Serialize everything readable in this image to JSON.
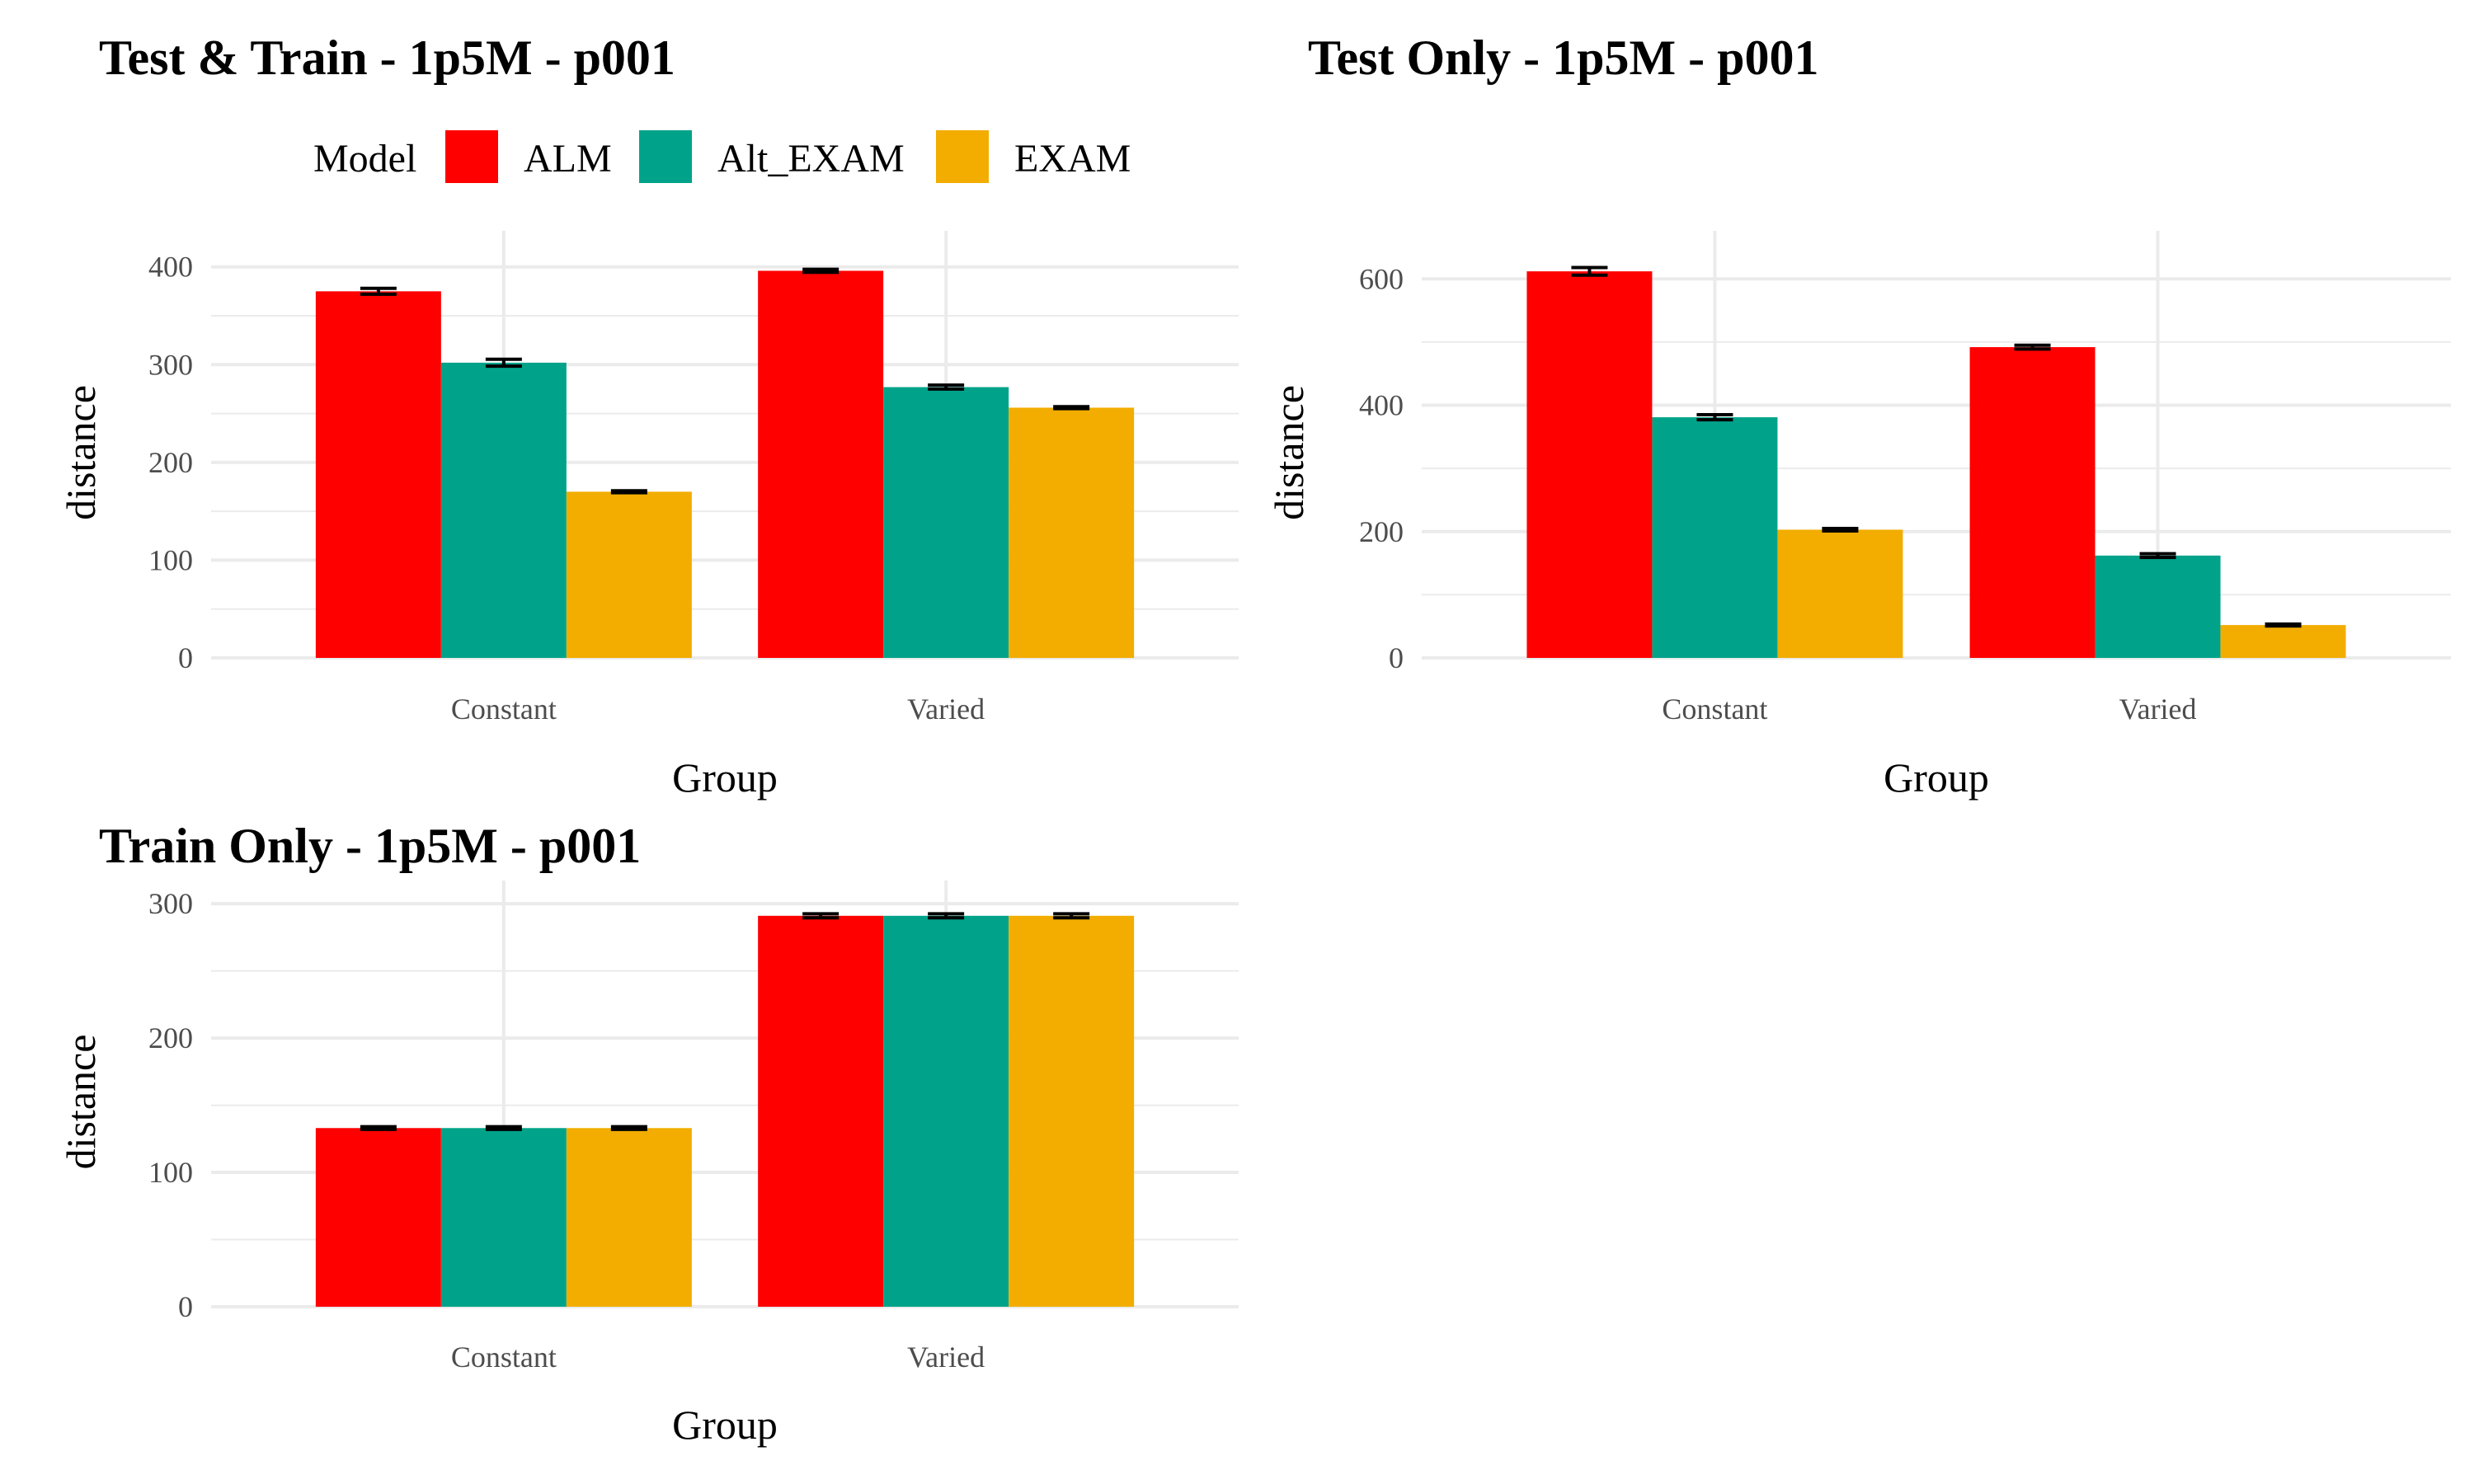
{
  "legend": {
    "title": "Model",
    "items": [
      {
        "label": "ALM",
        "color": "#ff0000"
      },
      {
        "label": "Alt_EXAM",
        "color": "#00a38a"
      },
      {
        "label": "EXAM",
        "color": "#f2ad00"
      }
    ]
  },
  "chart_data": [
    {
      "type": "bar",
      "title": "Test & Train - 1p5M - p001",
      "xlabel": "Group",
      "ylabel": "distance",
      "categories": [
        "Constant",
        "Varied"
      ],
      "ylim": [
        0,
        420
      ],
      "yticks": [
        0,
        100,
        200,
        300,
        400
      ],
      "legend_position": "top",
      "series": [
        {
          "name": "ALM",
          "values": [
            375,
            396
          ],
          "errors": [
            3,
            1.5
          ]
        },
        {
          "name": "Alt_EXAM",
          "values": [
            302,
            277
          ],
          "errors": [
            3.5,
            2
          ]
        },
        {
          "name": "EXAM",
          "values": [
            170,
            256
          ],
          "errors": [
            1,
            1
          ]
        }
      ]
    },
    {
      "type": "bar",
      "title": "Test Only - 1p5M - p001",
      "xlabel": "Group",
      "ylabel": "distance",
      "categories": [
        "Constant",
        "Varied"
      ],
      "ylim": [
        0,
        650
      ],
      "yticks": [
        0,
        200,
        400,
        600
      ],
      "series": [
        {
          "name": "ALM",
          "values": [
            612,
            492
          ],
          "errors": [
            6,
            3
          ]
        },
        {
          "name": "Alt_EXAM",
          "values": [
            381,
            162
          ],
          "errors": [
            4,
            3
          ]
        },
        {
          "name": "EXAM",
          "values": [
            203,
            52
          ],
          "errors": [
            2,
            1.5
          ]
        }
      ]
    },
    {
      "type": "bar",
      "title": "Train Only - 1p5M - p001",
      "xlabel": "Group",
      "ylabel": "distance",
      "categories": [
        "Constant",
        "Varied"
      ],
      "ylim": [
        0,
        305
      ],
      "yticks": [
        0,
        100,
        200,
        300
      ],
      "series": [
        {
          "name": "ALM",
          "values": [
            133,
            291
          ],
          "errors": [
            1,
            1.5
          ]
        },
        {
          "name": "Alt_EXAM",
          "values": [
            133,
            291
          ],
          "errors": [
            1,
            1.5
          ]
        },
        {
          "name": "EXAM",
          "values": [
            133,
            291
          ],
          "errors": [
            1,
            1.5
          ]
        }
      ]
    }
  ]
}
